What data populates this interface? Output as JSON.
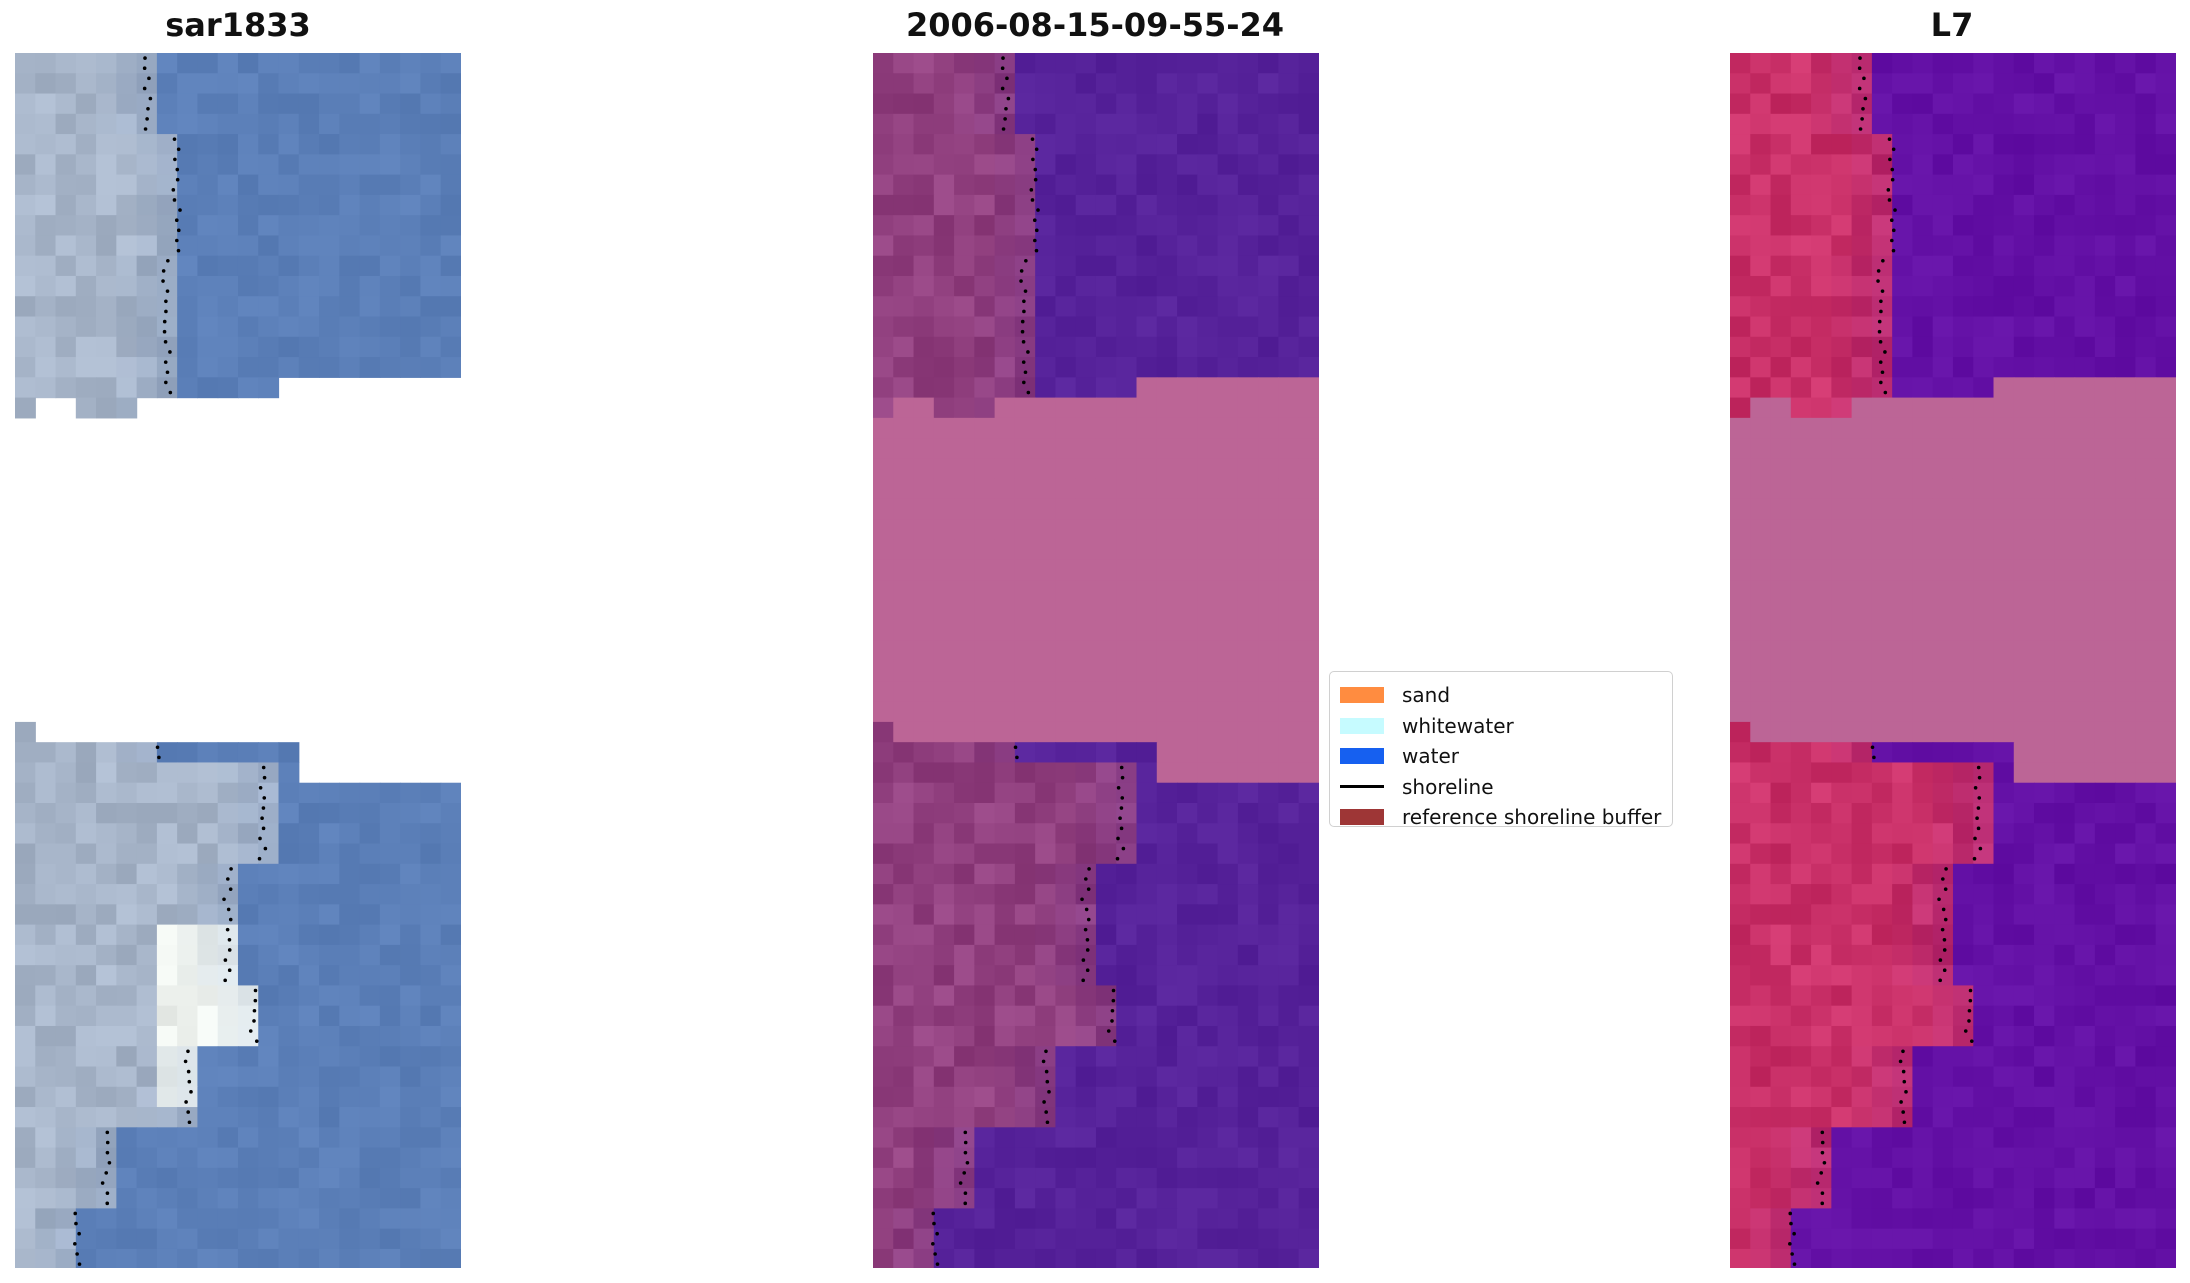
{
  "figure": {
    "titles": {
      "left": "sar1833",
      "middle": "2006-08-15-09-55-24",
      "right": "L7"
    }
  },
  "panels": {
    "left": {
      "name": "rgb-image",
      "base_color": "#5b7fb8",
      "land_color": "#a7b5c9",
      "bright_color": "#eef2ee"
    },
    "middle": {
      "name": "classified-image",
      "water_color": "#56229a",
      "land_color": "#91407f",
      "nodata_color": "#bc6596"
    },
    "right": {
      "name": "index-image",
      "water_color": "#6310a5",
      "land_color": "#c93068",
      "nodata_color": "#bc6596"
    }
  },
  "legend": {
    "items": [
      {
        "label": "sand",
        "color": "#ff8c40",
        "type": "patch"
      },
      {
        "label": "whitewater",
        "color": "#c6fbff",
        "type": "patch"
      },
      {
        "label": "water",
        "color": "#1660f0",
        "type": "patch"
      },
      {
        "label": "shoreline",
        "color": "#000000",
        "type": "line"
      },
      {
        "label": "reference shoreline buffer",
        "color": "#9e3636",
        "type": "patch"
      }
    ]
  }
}
